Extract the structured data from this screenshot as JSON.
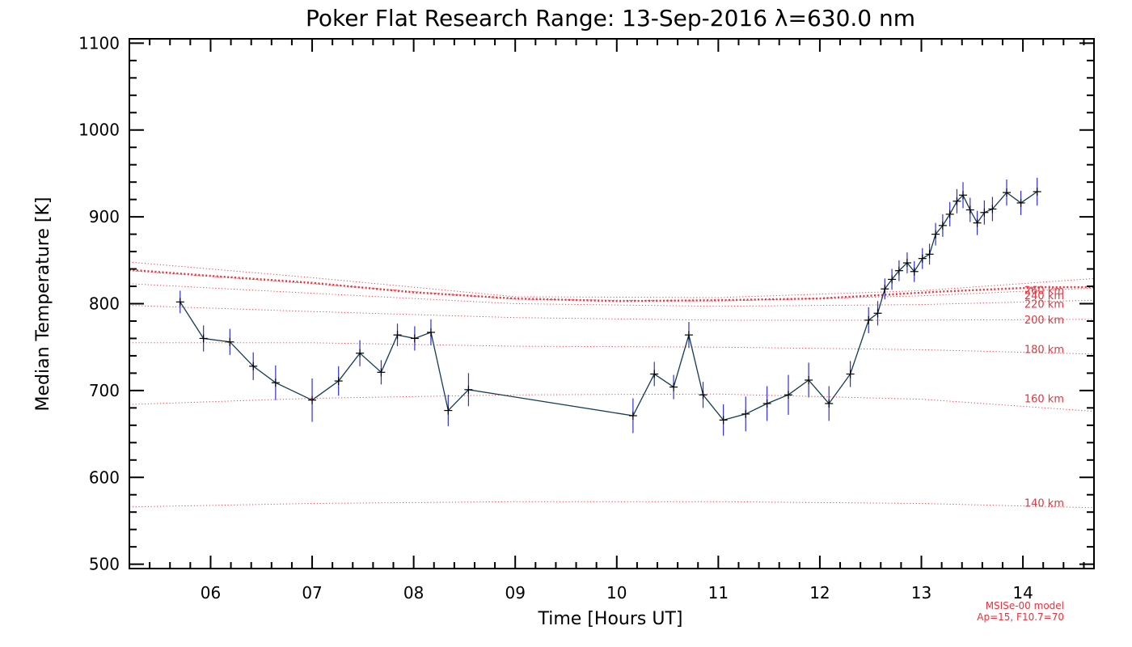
{
  "chart_data": {
    "type": "line",
    "title": "Poker Flat Research Range: 13-Sep-2016 λ=630.0 nm",
    "xlabel": "Time [Hours UT]",
    "ylabel": "Median Temperature [K]",
    "xlim": [
      5.2,
      14.7
    ],
    "ylim": [
      495,
      1105
    ],
    "x_ticks": [
      6,
      7,
      8,
      9,
      10,
      11,
      12,
      13,
      14
    ],
    "x_tick_labels": [
      "06",
      "07",
      "08",
      "09",
      "10",
      "11",
      "12",
      "13",
      "14"
    ],
    "y_ticks": [
      500,
      600,
      700,
      800,
      900,
      1000,
      1100
    ],
    "y_tick_labels": [
      "500",
      "600",
      "700",
      "800",
      "900",
      "1000",
      "1100"
    ],
    "grid": false,
    "colors": {
      "data_line": "#143a55",
      "error_bar": "#2f2fd8",
      "marker": "#000000",
      "model": "#e8323c"
    },
    "series": [
      {
        "x": [
          5.7,
          5.93,
          6.19,
          6.42,
          6.64,
          7.0,
          7.26,
          7.47,
          7.68,
          7.84,
          8.01,
          8.17,
          8.34,
          8.54,
          10.16,
          10.37,
          10.56,
          10.71,
          10.85,
          11.05,
          11.27,
          11.48,
          11.69,
          11.89,
          12.09,
          12.3,
          12.48,
          12.57,
          12.64,
          12.71,
          12.78,
          12.86,
          12.93,
          13.01,
          13.08,
          13.14,
          13.21,
          13.28,
          13.35,
          13.41,
          13.48,
          13.55,
          13.62,
          13.7,
          13.84,
          13.98,
          14.14
        ],
        "y": [
          802,
          760,
          756,
          728,
          709,
          689,
          711,
          743,
          721,
          764,
          760,
          767,
          677,
          701,
          671,
          719,
          704,
          764,
          695,
          666,
          673,
          685,
          695,
          712,
          685,
          719,
          781,
          789,
          817,
          828,
          838,
          847,
          837,
          852,
          857,
          880,
          890,
          903,
          918,
          925,
          908,
          893,
          905,
          909,
          928,
          916,
          929
        ],
        "error": [
          13,
          15,
          15,
          16,
          20,
          25,
          17,
          15,
          14,
          13,
          14,
          15,
          18,
          19,
          20,
          14,
          14,
          15,
          15,
          18,
          20,
          20,
          23,
          20,
          20,
          15,
          15,
          14,
          12,
          12,
          12,
          12,
          12,
          12,
          12,
          13,
          13,
          14,
          14,
          15,
          14,
          14,
          14,
          14,
          15,
          14,
          16
        ]
      }
    ],
    "model_lines": [
      {
        "label": "140 km",
        "x": [
          5.2,
          7.0,
          9.0,
          11.0,
          13.0,
          14.7
        ],
        "y": [
          566,
          570,
          572,
          572,
          570,
          565
        ]
      },
      {
        "label": "160 km",
        "x": [
          5.2,
          7.0,
          9.0,
          11.0,
          13.0,
          14.7
        ],
        "y": [
          684,
          691,
          695,
          696,
          690,
          676
        ]
      },
      {
        "label": "180 km",
        "x": [
          5.2,
          7.0,
          9.0,
          11.0,
          13.0,
          14.7
        ],
        "y": [
          755,
          755,
          751,
          750,
          747,
          742
        ]
      },
      {
        "label": "200 km",
        "x": [
          5.2,
          7.0,
          9.0,
          11.0,
          13.0,
          14.7
        ],
        "y": [
          798,
          791,
          784,
          781,
          781,
          782
        ]
      },
      {
        "label": "220 km",
        "x": [
          5.2,
          7.0,
          9.0,
          11.0,
          13.0,
          14.7
        ],
        "y": [
          823,
          812,
          800,
          797,
          799,
          804
        ]
      },
      {
        "label": "240 km",
        "x": [
          5.2,
          7.0,
          9.0,
          11.0,
          13.0,
          14.7
        ],
        "y": [
          838,
          823,
          805,
          803,
          809,
          818
        ]
      },
      {
        "label": "260 km",
        "x": [
          5.2,
          7.0,
          9.0,
          11.0,
          13.0,
          14.7
        ],
        "y": [
          848,
          830,
          808,
          807,
          815,
          829
        ]
      }
    ],
    "model_note": [
      "MSISe-00 model",
      "Ap=15, F10.7=70"
    ]
  }
}
